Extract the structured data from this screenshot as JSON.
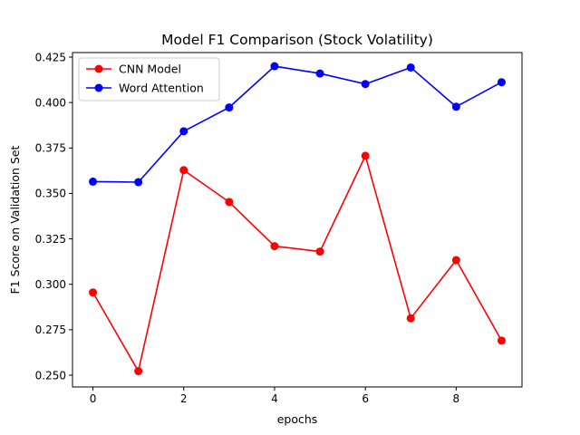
{
  "chart_data": {
    "type": "line",
    "title": "Model F1 Comparison (Stock Volatility)",
    "xlabel": "epochs",
    "ylabel": "F1 Score on Validation Set",
    "x": [
      0,
      1,
      2,
      3,
      4,
      5,
      6,
      7,
      8,
      9
    ],
    "xlim": [
      -0.45,
      9.45
    ],
    "ylim": [
      0.2435,
      0.4275
    ],
    "xticks": [
      0,
      2,
      4,
      6,
      8
    ],
    "xtick_labels": [
      "0",
      "2",
      "4",
      "6",
      "8"
    ],
    "yticks": [
      0.25,
      0.275,
      0.3,
      0.325,
      0.35,
      0.375,
      0.4,
      0.425
    ],
    "ytick_labels": [
      "0.250",
      "0.275",
      "0.300",
      "0.325",
      "0.350",
      "0.375",
      "0.400",
      "0.425"
    ],
    "grid": false,
    "legend_position": "top-left",
    "series": [
      {
        "name": "CNN Model",
        "color": "#ff0000",
        "marker": "circle",
        "values": [
          0.2955,
          0.2522,
          0.3628,
          0.3453,
          0.321,
          0.318,
          0.3707,
          0.2813,
          0.3133,
          0.269
        ]
      },
      {
        "name": "Word Attention",
        "color": "#0000ff",
        "marker": "circle",
        "values": [
          0.3565,
          0.3562,
          0.3842,
          0.3973,
          0.42,
          0.416,
          0.4102,
          0.4193,
          0.3977,
          0.4112
        ]
      }
    ]
  }
}
